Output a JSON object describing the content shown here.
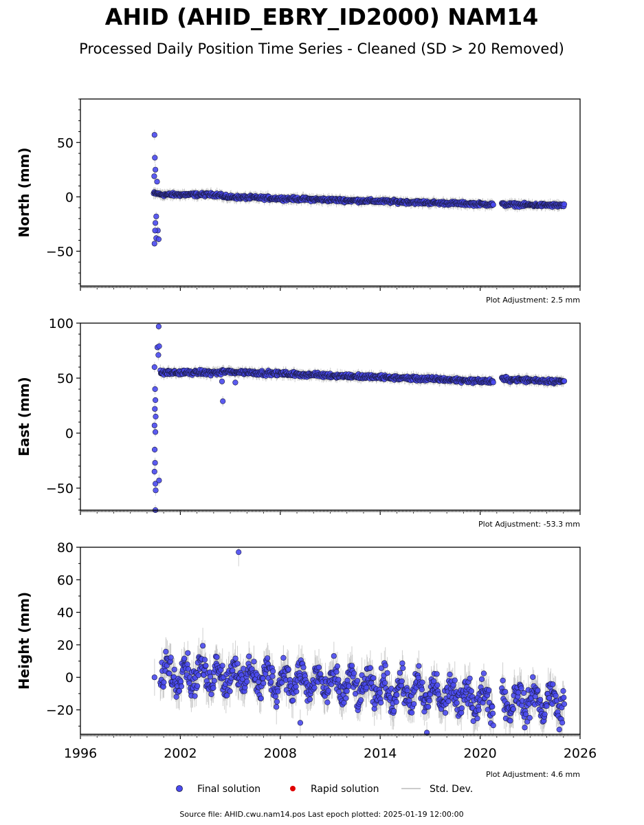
{
  "title": "AHID (AHID_EBRY_ID2000) NAM14",
  "subtitle": "Processed Daily Position Time Series - Cleaned (SD > 20 Removed)",
  "source_text": "Source file: AHID.cwu.nam14.pos  Last epoch plotted: 2025-01-19 12:00:00",
  "legend": {
    "final": "Final solution",
    "rapid": "Rapid solution",
    "std": "Std. Dev."
  },
  "colors": {
    "final": "#4a4af0",
    "final_edge": "#1a1a40",
    "rapid": "#e00000",
    "std": "#bbbbbb"
  },
  "chart_data": [
    {
      "type": "scatter",
      "ylabel": "North (mm)",
      "ylim": [
        -82,
        90
      ],
      "xlim": [
        1996,
        2026
      ],
      "yticks": [
        -50,
        0,
        50
      ],
      "yticks_minor_step": 10,
      "xticks": [
        1996,
        2002,
        2008,
        2014,
        2020,
        2026
      ],
      "show_xticklabels": false,
      "adjustment": "Plot Adjustment: 2.5 mm",
      "series": [
        {
          "name": "Final solution",
          "segments": [
            [
              2000.4,
              2000.75,
              3
            ],
            [
              2000.75,
              2004.5,
              2
            ],
            [
              2004.5,
              2020.8,
              0,
              -7
            ],
            [
              2021.3,
              2025.05,
              -7,
              -8
            ]
          ],
          "noise": 1.8,
          "outliers": [
            [
              2000.45,
              57
            ],
            [
              2000.47,
              36
            ],
            [
              2000.5,
              25
            ],
            [
              2000.43,
              19
            ],
            [
              2000.6,
              14
            ],
            [
              2000.45,
              -43
            ],
            [
              2000.55,
              -38
            ],
            [
              2000.65,
              -31
            ],
            [
              2000.5,
              -24
            ],
            [
              2000.55,
              -18
            ],
            [
              2000.7,
              -39
            ],
            [
              2000.48,
              -31
            ]
          ]
        }
      ]
    },
    {
      "type": "scatter",
      "ylabel": "East (mm)",
      "ylim": [
        -70,
        100
      ],
      "xlim": [
        1996,
        2026
      ],
      "yticks": [
        -50,
        0,
        50,
        100
      ],
      "yticks_minor_step": 10,
      "xticks": [
        1996,
        2002,
        2008,
        2014,
        2020,
        2026
      ],
      "show_xticklabels": false,
      "adjustment": "Plot Adjustment: -53.3 mm",
      "series": [
        {
          "name": "Final solution",
          "segments": [
            [
              2000.8,
              2004.5,
              55
            ],
            [
              2004.5,
              2020.8,
              56,
              47
            ],
            [
              2021.3,
              2025.05,
              49,
              47
            ]
          ],
          "noise": 2.2,
          "outliers": [
            [
              2000.7,
              97
            ],
            [
              2000.62,
              78
            ],
            [
              2000.68,
              71
            ],
            [
              2000.73,
              79
            ],
            [
              2000.45,
              60
            ],
            [
              2000.48,
              40
            ],
            [
              2000.5,
              30
            ],
            [
              2000.47,
              22
            ],
            [
              2000.52,
              15
            ],
            [
              2000.45,
              7
            ],
            [
              2000.5,
              1
            ],
            [
              2000.46,
              -15
            ],
            [
              2000.48,
              -27
            ],
            [
              2000.45,
              -35
            ],
            [
              2000.5,
              -46
            ],
            [
              2000.52,
              -52
            ],
            [
              2000.72,
              -43
            ],
            [
              2000.5,
              -70
            ],
            [
              2004.5,
              47
            ],
            [
              2004.55,
              29
            ],
            [
              2005.3,
              46
            ]
          ]
        }
      ]
    },
    {
      "type": "scatter",
      "ylabel": "Height (mm)",
      "ylim": [
        -35,
        80
      ],
      "xlim": [
        1996,
        2026
      ],
      "yticks": [
        -20,
        0,
        20,
        40,
        60,
        80
      ],
      "yticks_minor_step": 10,
      "xticks": [
        1996,
        2002,
        2008,
        2014,
        2020,
        2026
      ],
      "show_xticklabels": true,
      "adjustment": "Plot Adjustment: 4.6 mm",
      "series": [
        {
          "name": "Final solution",
          "segments": [
            [
              2000.8,
              2004.5,
              3,
              2
            ],
            [
              2004.5,
              2020.8,
              2,
              -14
            ],
            [
              2021.3,
              2025.05,
              -14,
              -15
            ]
          ],
          "noise": 10,
          "outliers": [
            [
              2000.45,
              0
            ],
            [
              2005.5,
              77
            ],
            [
              2009.2,
              -28
            ],
            [
              2016.8,
              -34
            ]
          ]
        }
      ]
    }
  ]
}
